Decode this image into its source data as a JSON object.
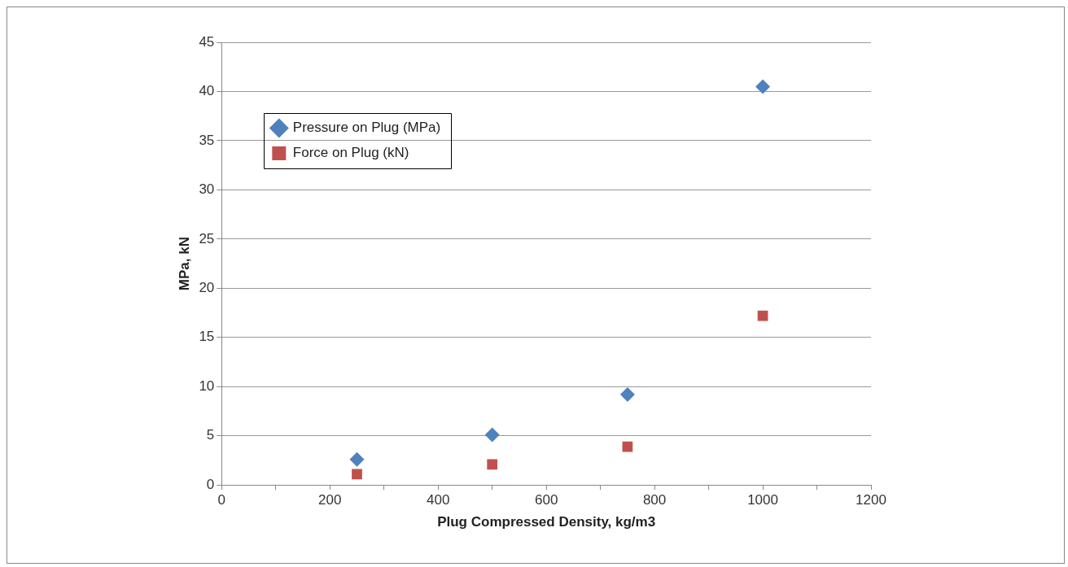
{
  "chart_data": {
    "type": "scatter",
    "xlabel": "Plug Compressed Density, kg/m3",
    "ylabel": "MPa, kN",
    "x": [
      250,
      500,
      750,
      1000
    ],
    "series": [
      {
        "name": "Pressure on Plug (MPa)",
        "color": "#4f81bd",
        "marker": "diamond",
        "values": [
          2.6,
          5.1,
          9.2,
          40.5
        ]
      },
      {
        "name": "Force on Plug (kN)",
        "color": "#c0504d",
        "marker": "square",
        "values": [
          1.1,
          2.1,
          3.9,
          17.2
        ]
      }
    ],
    "xlim": [
      0,
      1200
    ],
    "xticks": [
      0,
      {
        "value": 100,
        "label": null
      },
      200,
      {
        "value": 300,
        "label": null
      },
      400,
      {
        "value": 500,
        "label": null
      },
      600,
      {
        "value": 700,
        "label": null
      },
      800,
      {
        "value": 900,
        "label": null
      },
      1000,
      {
        "value": 1100,
        "label": null
      },
      1200
    ],
    "ylim": [
      0,
      45
    ],
    "yticks": [
      0,
      5,
      10,
      15,
      20,
      25,
      30,
      35,
      40,
      45
    ],
    "grid": "y",
    "legend": "top left"
  }
}
